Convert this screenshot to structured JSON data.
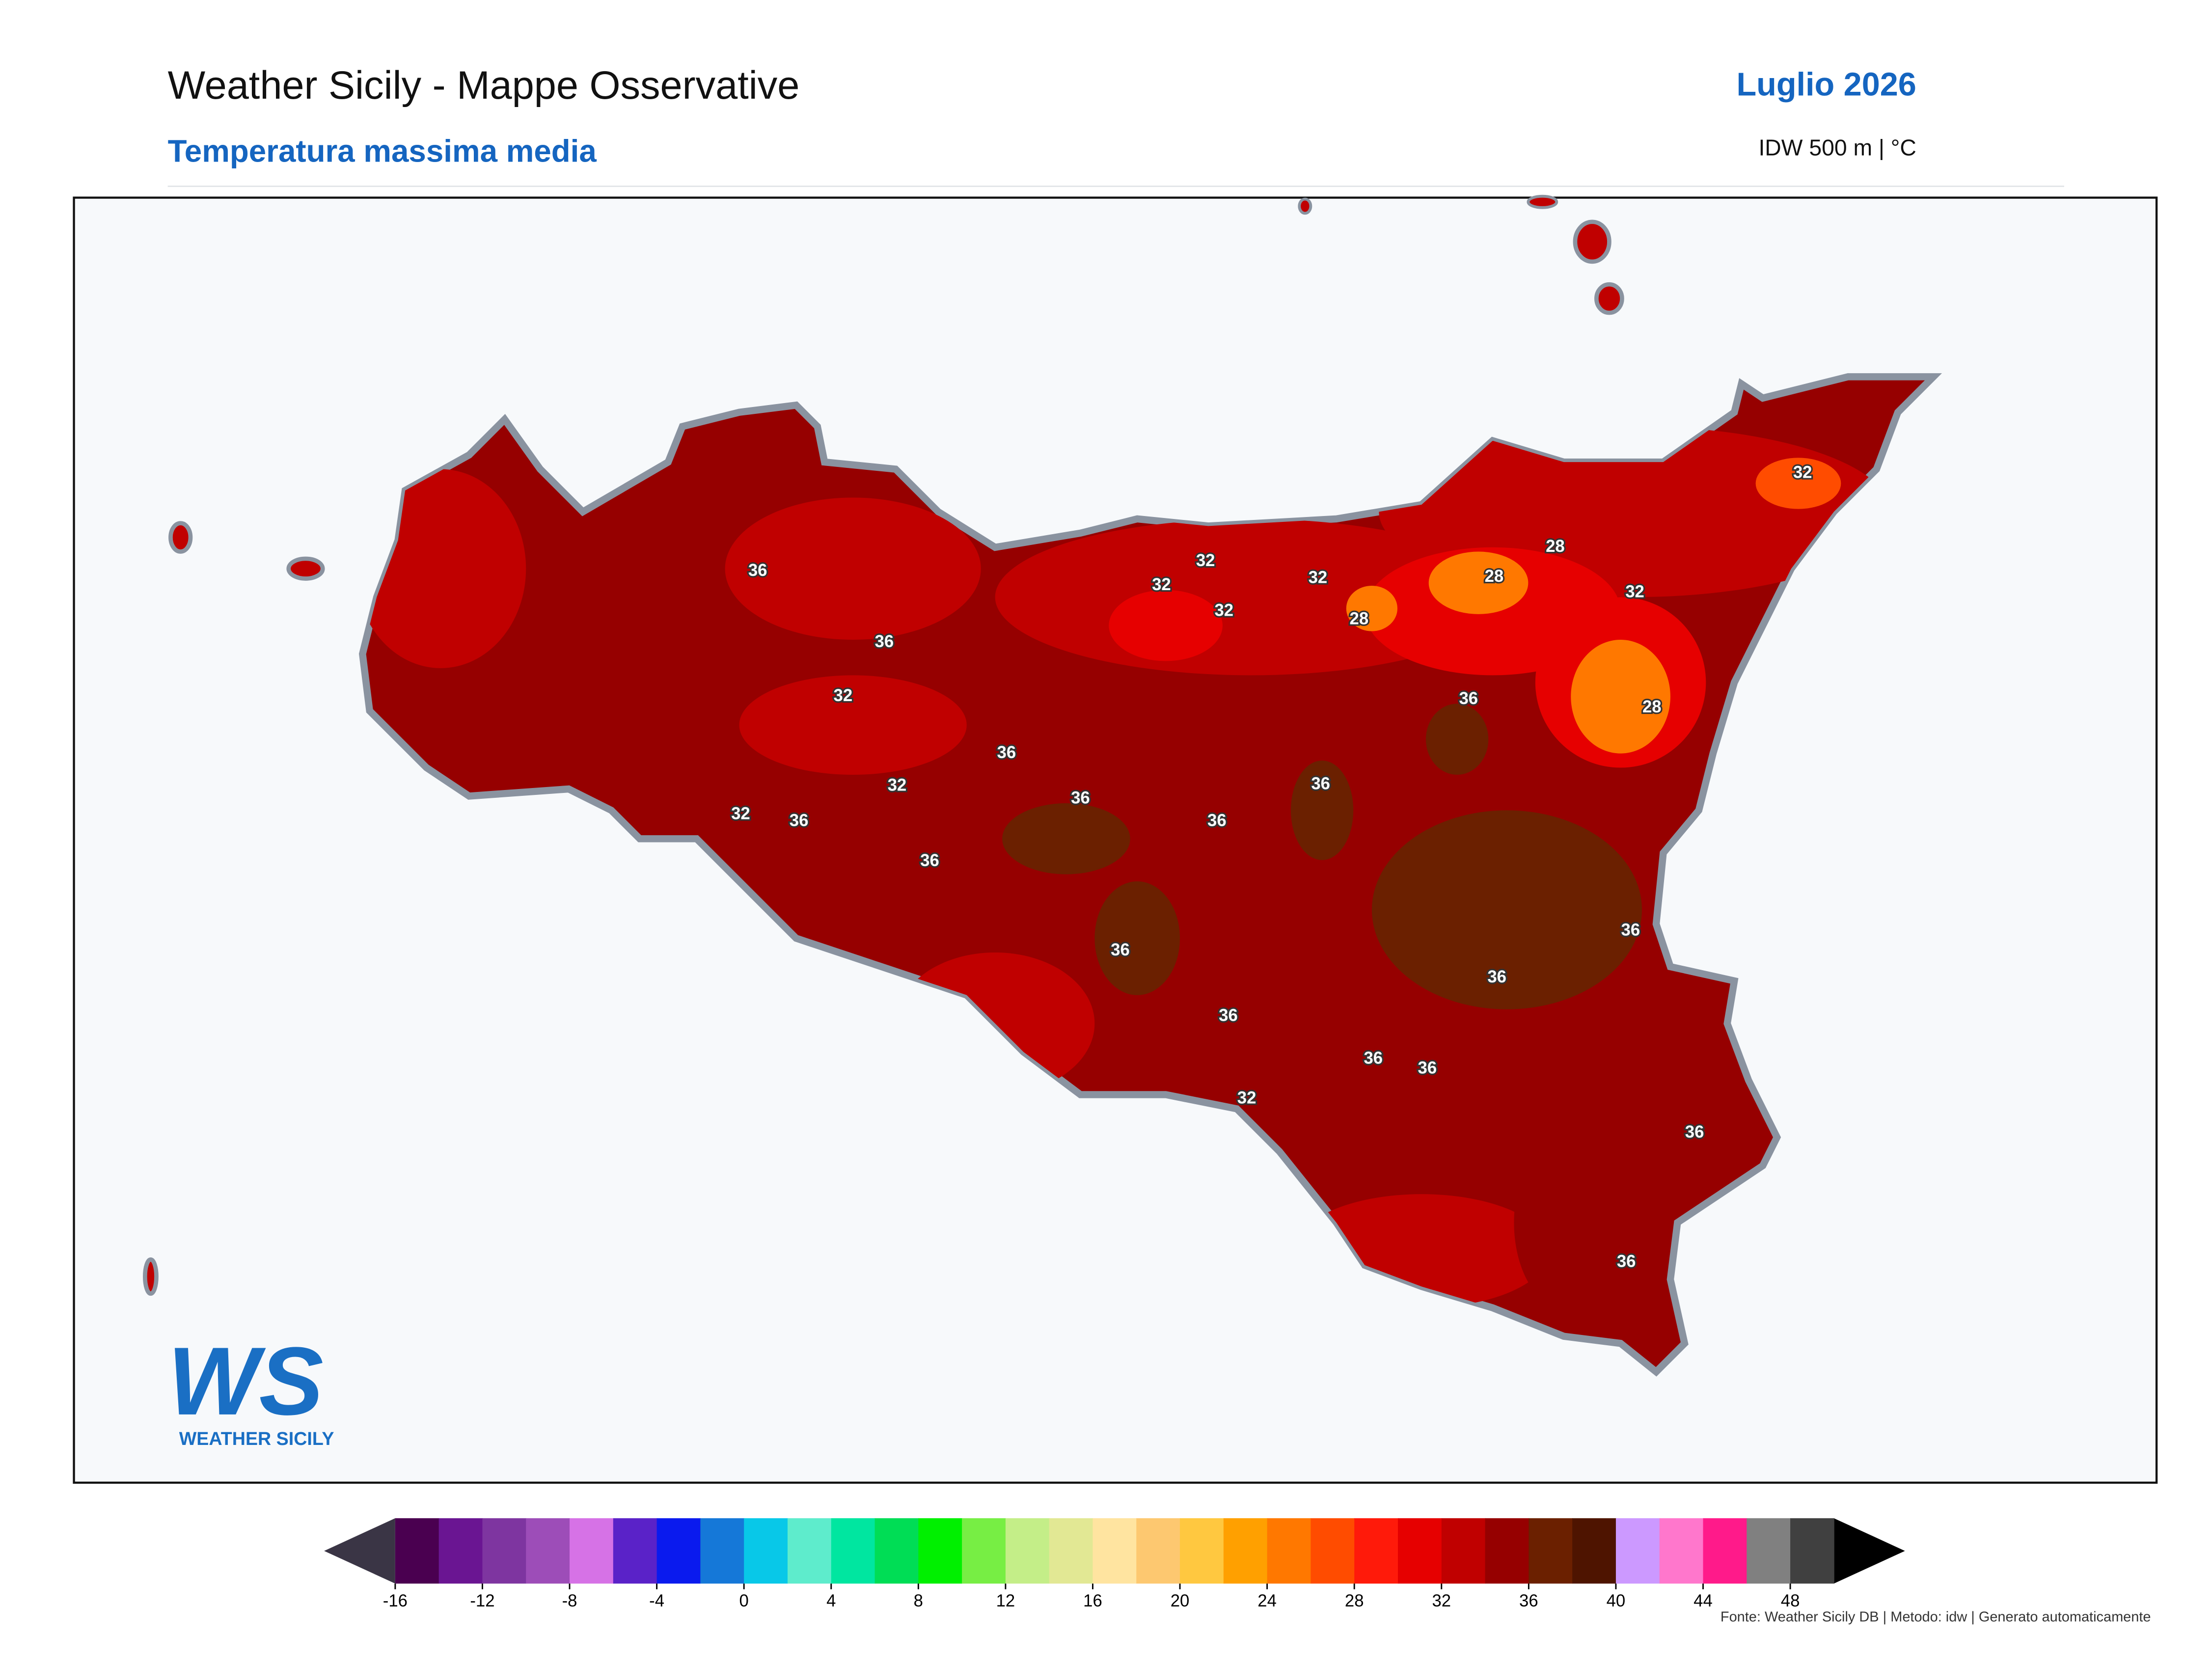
{
  "header": {
    "title": "Weather Sicily - Mappe Osservative",
    "subtitle": "Temperatura massima media",
    "period": "Luglio 2026",
    "method": "IDW 500 m | °C"
  },
  "map": {
    "contour_labels": [
      36,
      36,
      32,
      36,
      32,
      32,
      36,
      36,
      36,
      32,
      32,
      32,
      32,
      28,
      28,
      28,
      32,
      32,
      36,
      28,
      36,
      36,
      36,
      36,
      36,
      36,
      36,
      36,
      32,
      36,
      36
    ]
  },
  "logo": {
    "mark": "WS",
    "text": "WEATHER SICILY"
  },
  "colorbar": {
    "lim": [
      -16,
      50
    ],
    "ticks": [
      -16,
      -12,
      -8,
      -4,
      0,
      4,
      8,
      12,
      16,
      20,
      24,
      28,
      32,
      36,
      40,
      44,
      48
    ],
    "colors": [
      "#4a0050",
      "#6a1592",
      "#7e35a0",
      "#9d4db8",
      "#d672e6",
      "#5a22c8",
      "#0a1aee",
      "#1578d8",
      "#08c8e8",
      "#5eeccc",
      "#00e6a0",
      "#00dd55",
      "#00f000",
      "#77ee44",
      "#c4ee88",
      "#e2e894",
      "#ffe4a0",
      "#fdc870",
      "#ffc840",
      "#ffa000",
      "#ff7800",
      "#ff4c00",
      "#ff1a0a",
      "#e60000",
      "#c00000",
      "#960000",
      "#6b2000",
      "#4e1400",
      "#cc99ff",
      "#ff77cc",
      "#ff1a8a",
      "#808080",
      "#404040"
    ],
    "under_color": "#3a3545",
    "over_color": "#000000"
  },
  "footer": {
    "source": "Fonte: Weather Sicily DB | Metodo: idw | Generato automaticamente"
  }
}
